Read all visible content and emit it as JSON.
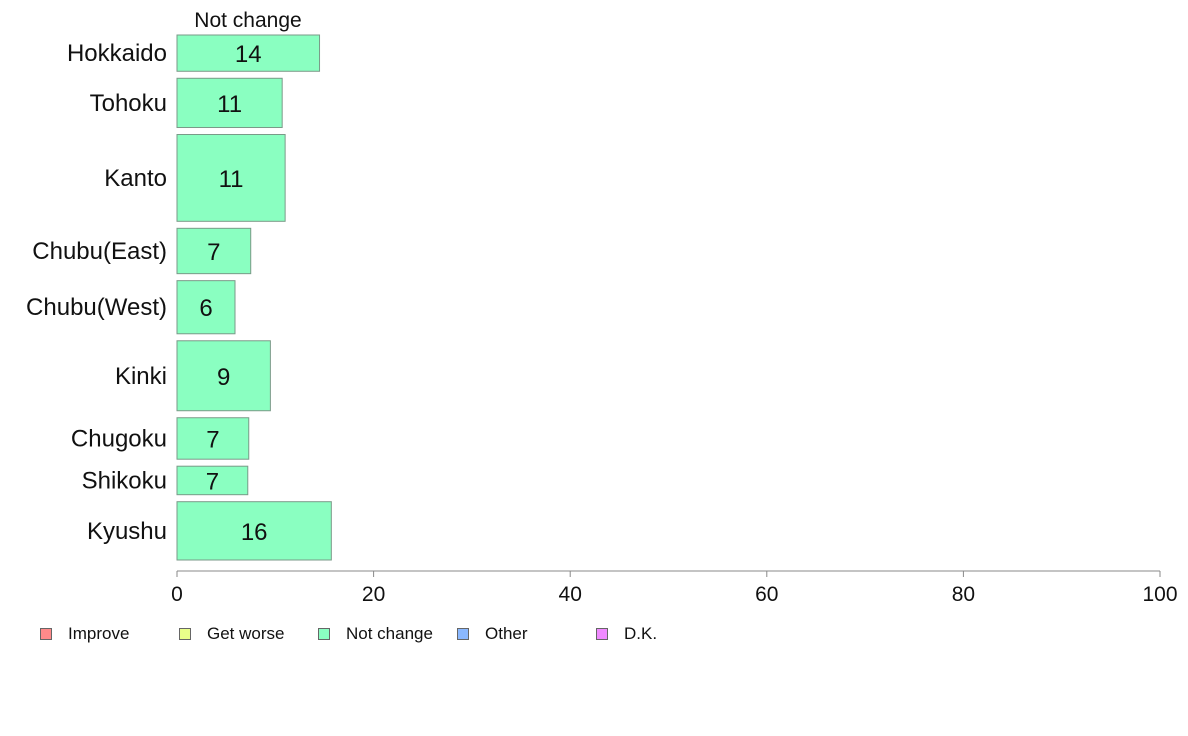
{
  "chart_data": {
    "type": "bar",
    "orientation": "horizontal",
    "stacked": true,
    "title": "Not change",
    "categories": [
      "Hokkaido",
      "Tohoku",
      "Kanto",
      "Chubu(East)",
      "Chubu(West)",
      "Kinki",
      "Chugoku",
      "Shikoku",
      "Kyushu"
    ],
    "category_weights": [
      0.56,
      0.76,
      1.34,
      0.7,
      0.82,
      1.08,
      0.64,
      0.44,
      0.9
    ],
    "series": [
      {
        "name": "Improve",
        "color": "#ff8a8a",
        "values": [
          0,
          0,
          0,
          0,
          0,
          0,
          0,
          0,
          0
        ]
      },
      {
        "name": "Get worse",
        "color": "#e9ff8a",
        "values": [
          0,
          0,
          0,
          0,
          0,
          0,
          0,
          0,
          0
        ]
      },
      {
        "name": "Not change",
        "color": "#8affc1",
        "values": [
          14.5,
          10.7,
          11.0,
          7.5,
          5.9,
          9.5,
          7.3,
          7.2,
          15.7
        ],
        "data_labels": [
          "14",
          "11",
          "11",
          "7",
          "6",
          "9",
          "7",
          "7",
          "16"
        ]
      },
      {
        "name": "Other",
        "color": "#8ab8ff",
        "values": [
          0,
          0,
          0,
          0,
          0,
          0,
          0,
          0,
          0
        ]
      },
      {
        "name": "D.K.",
        "color": "#f08aff",
        "values": [
          0,
          0,
          0,
          0,
          0,
          0,
          0,
          0,
          0
        ]
      }
    ],
    "xlim": [
      0,
      100
    ],
    "x_ticks": [
      0,
      20,
      40,
      60,
      80,
      100
    ],
    "x_tick_labels": [
      "0",
      "20",
      "40",
      "60",
      "80",
      "100"
    ],
    "grid": false,
    "legend_position": "bottom-left"
  }
}
